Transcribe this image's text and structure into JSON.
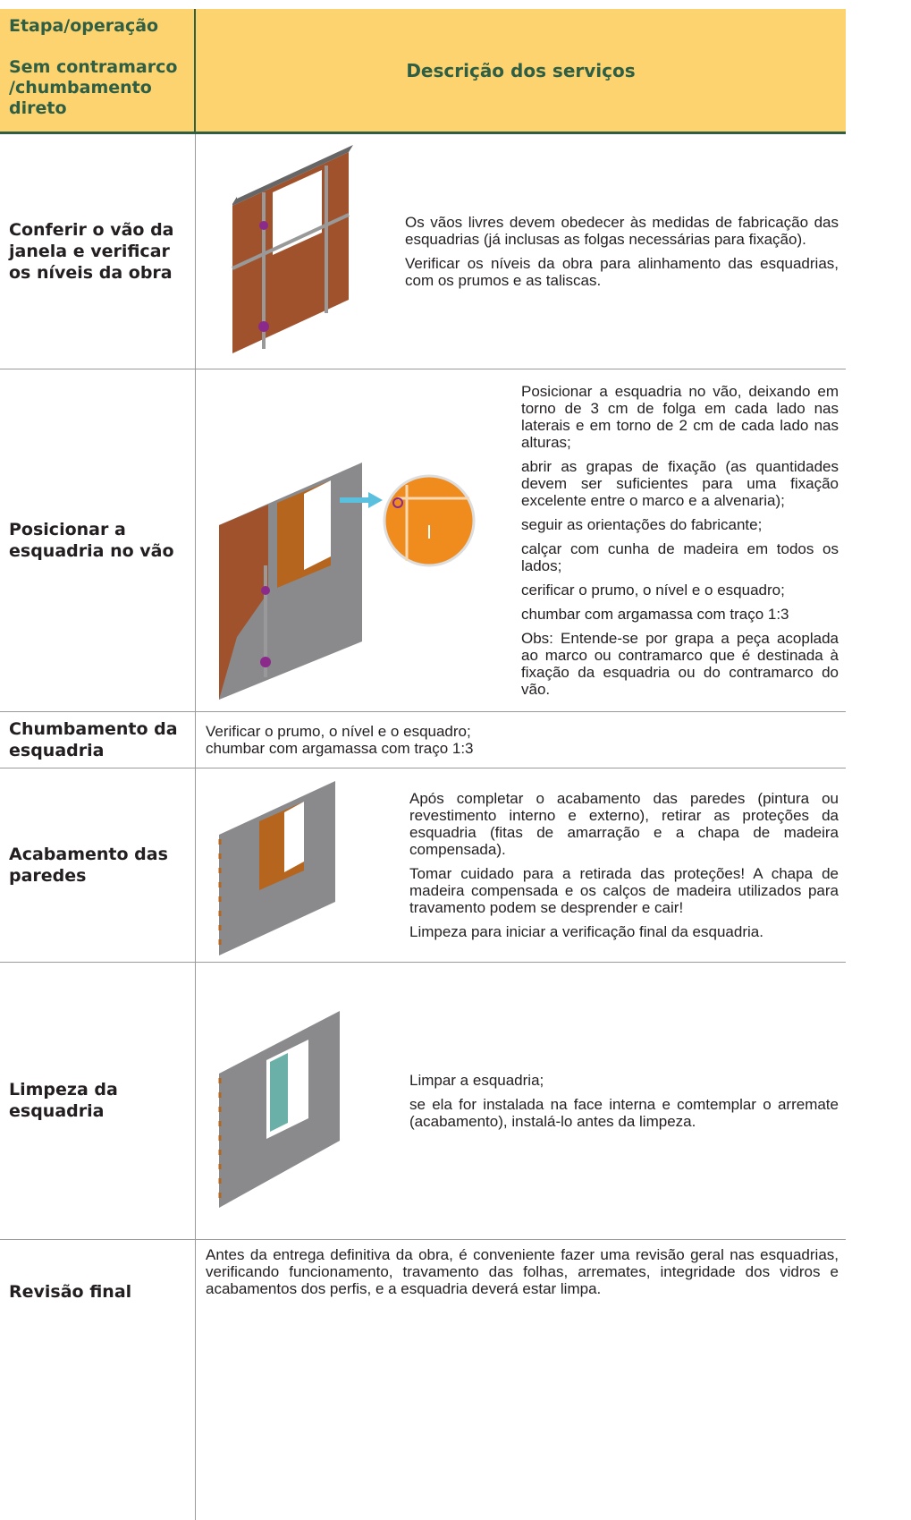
{
  "header": {
    "stage_label": "Etapa/operação",
    "method_label": "Sem contramarco /chumbamento direto",
    "description_label": "Descrição dos serviços"
  },
  "rows": [
    {
      "stage": "Conferir o vão da janela e verificar os níveis da obra",
      "paragraphs": [
        "Os vãos livres devem obedecer às medidas de fabricação das esquadrias (já inclusas as folgas necessárias para fixação).",
        "Verificar os níveis da obra para alinhamento das esquadrias, com os prumos e as taliscas."
      ]
    },
    {
      "stage": "Posicionar a esquadria no vão",
      "paragraphs": [
        "Posicionar a esquadria no vão, deixando em torno de 3 cm de folga em cada lado nas laterais e em torno de 2 cm de cada lado nas alturas;",
        "abrir as grapas de fixação (as quantidades devem ser suficientes para uma fixação excelente entre o marco e a alvenaria);",
        "seguir as orientações do fabricante;",
        "calçar com cunha de madeira em todos os lados;",
        "cerificar o prumo, o nível e o esquadro;",
        "chumbar com argamassa com traço 1:3",
        "Obs: Entende-se por grapa a peça acoplada ao marco ou contramarco que é destinada à fixação da esquadria ou do contramarco do vão."
      ]
    },
    {
      "stage": "Chumbamento da esquadria",
      "paragraphs": [
        "Verificar o prumo, o nível e o esquadro;",
        "chumbar com argamassa com traço 1:3"
      ]
    },
    {
      "stage": "Acabamento das paredes",
      "paragraphs": [
        "Após completar o acabamento das paredes (pintura ou revestimento interno e externo), retirar as proteções da esquadria (fitas de amarração e a chapa de madeira compensada).",
        "Tomar cuidado para a retirada das proteções! A chapa de madeira compensada e os calços de madeira utilizados para travamento podem se desprender e cair!",
        "Limpeza para iniciar a verificação final da esquadria."
      ]
    },
    {
      "stage": "Limpeza da esquadria",
      "paragraphs": [
        "Limpar a esquadria;",
        "se ela for instalada na face interna e comtemplar o arremate (acabamento), instalá-lo antes da limpeza."
      ]
    },
    {
      "stage": "Revisão final",
      "paragraphs": [
        "Antes da entrega definitiva da obra, é conveniente fazer uma revisão geral nas esquadrias, verificando funcionamento, travamento das folhas, arremates, integridade dos vidros e acabamentos dos perfis, e a esquadria deverá estar limpa."
      ]
    }
  ]
}
